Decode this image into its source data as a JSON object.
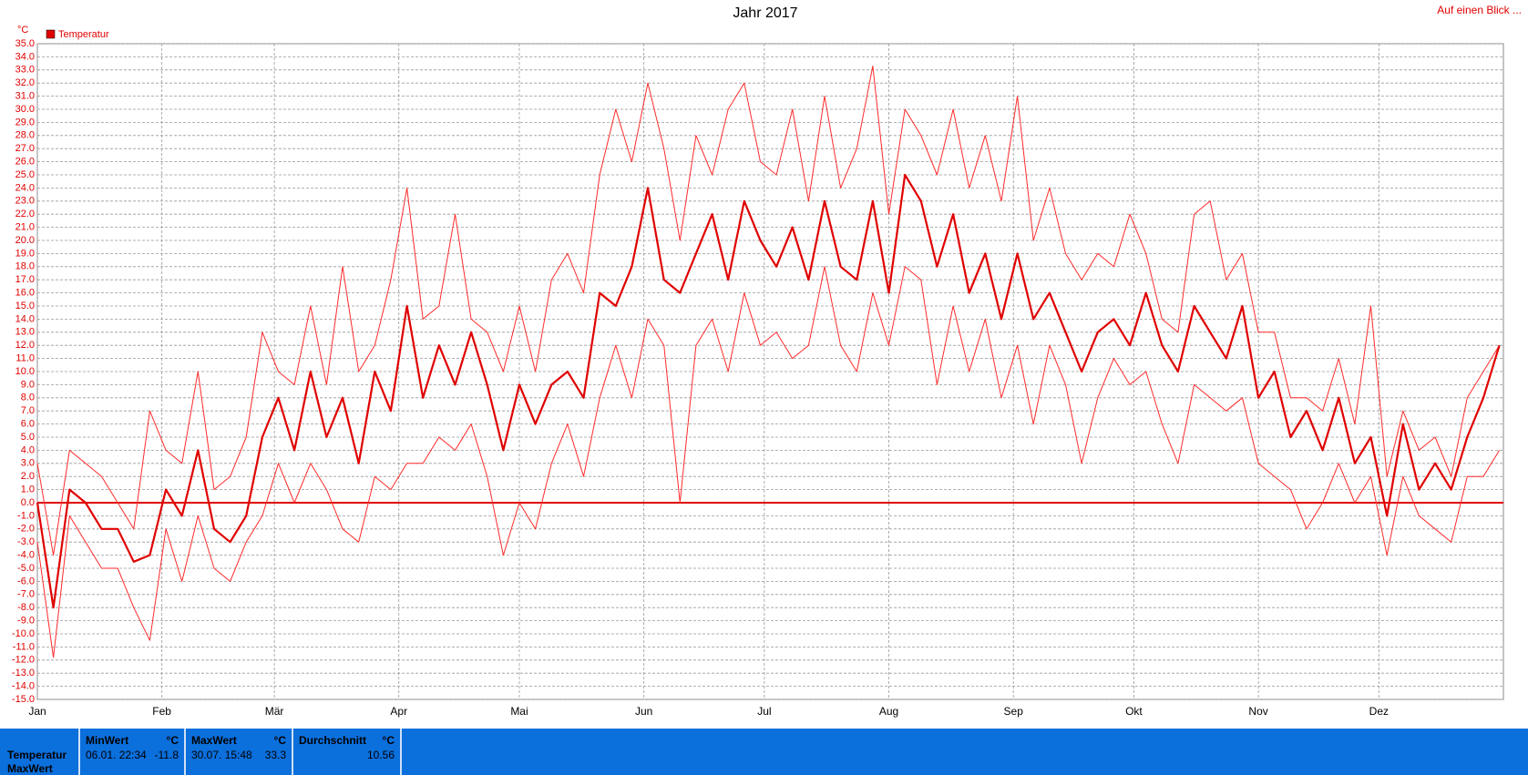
{
  "chart_data": {
    "type": "line",
    "title": "Jahr 2017",
    "y_unit": "°C",
    "legend": "Temperatur",
    "legend_color": "#e00000",
    "link": "Auf einen Blick ...",
    "grid": true,
    "zero_line": true,
    "xlim": [
      0,
      365
    ],
    "xticks": [
      {
        "value": 0,
        "label": "Jan"
      },
      {
        "value": 31,
        "label": "Feb"
      },
      {
        "value": 59,
        "label": "Mär"
      },
      {
        "value": 90,
        "label": "Apr"
      },
      {
        "value": 120,
        "label": "Mai"
      },
      {
        "value": 151,
        "label": "Jun"
      },
      {
        "value": 181,
        "label": "Jul"
      },
      {
        "value": 212,
        "label": "Aug"
      },
      {
        "value": 243,
        "label": "Sep"
      },
      {
        "value": 273,
        "label": "Okt"
      },
      {
        "value": 304,
        "label": "Nov"
      },
      {
        "value": 334,
        "label": "Dez"
      }
    ],
    "ylim": [
      -15,
      35
    ],
    "yticks": [
      {
        "value": 35,
        "label": "35.0"
      },
      {
        "value": 34,
        "label": "34.0"
      },
      {
        "value": 33,
        "label": "33.0"
      },
      {
        "value": 32,
        "label": "32.0"
      },
      {
        "value": 31,
        "label": "31.0"
      },
      {
        "value": 30,
        "label": "30.0"
      },
      {
        "value": 29,
        "label": "29.0"
      },
      {
        "value": 28,
        "label": "28.0"
      },
      {
        "value": 27,
        "label": "27.0"
      },
      {
        "value": 26,
        "label": "26.0"
      },
      {
        "value": 25,
        "label": "25.0"
      },
      {
        "value": 24,
        "label": "24.0"
      },
      {
        "value": 23,
        "label": "23.0"
      },
      {
        "value": 22,
        "label": "22.0"
      },
      {
        "value": 21,
        "label": "21.0"
      },
      {
        "value": 20,
        "label": "20.0"
      },
      {
        "value": 19,
        "label": "19.0"
      },
      {
        "value": 18,
        "label": "18.0"
      },
      {
        "value": 17,
        "label": "17.0"
      },
      {
        "value": 16,
        "label": "16.0"
      },
      {
        "value": 15,
        "label": "15.0"
      },
      {
        "value": 14,
        "label": "14.0"
      },
      {
        "value": 13,
        "label": "13.0"
      },
      {
        "value": 12,
        "label": "12.0"
      },
      {
        "value": 11,
        "label": "11.0"
      },
      {
        "value": 10,
        "label": "10.0"
      },
      {
        "value": 9,
        "label": "9.0"
      },
      {
        "value": 8,
        "label": "8.0"
      },
      {
        "value": 7,
        "label": "7.0"
      },
      {
        "value": 6,
        "label": "6.0"
      },
      {
        "value": 5,
        "label": "5.0"
      },
      {
        "value": 4,
        "label": "4.0"
      },
      {
        "value": 3,
        "label": "3.0"
      },
      {
        "value": 2,
        "label": "2.0"
      },
      {
        "value": 1,
        "label": "1.0"
      },
      {
        "value": 0,
        "label": "0.0"
      },
      {
        "value": -1,
        "label": "-1.0"
      },
      {
        "value": -2,
        "label": "-2.0"
      },
      {
        "value": -3,
        "label": "-3.0"
      },
      {
        "value": -4,
        "label": "-4.0"
      },
      {
        "value": -5,
        "label": "-5.0"
      },
      {
        "value": -6,
        "label": "-6.0"
      },
      {
        "value": -7,
        "label": "-7.0"
      },
      {
        "value": -8,
        "label": "-8.0"
      },
      {
        "value": -9,
        "label": "-9.0"
      },
      {
        "value": -10,
        "label": "-10.0"
      },
      {
        "value": -11,
        "label": "-11.0"
      },
      {
        "value": -12,
        "label": "-12.0"
      },
      {
        "value": -13,
        "label": "-13.0"
      },
      {
        "value": -14,
        "label": "-14.0"
      },
      {
        "value": -15,
        "label": "-15.0"
      }
    ],
    "x": [
      0,
      4,
      8,
      12,
      16,
      20,
      24,
      28,
      32,
      36,
      40,
      44,
      48,
      52,
      56,
      60,
      64,
      68,
      72,
      76,
      80,
      84,
      88,
      92,
      96,
      100,
      104,
      108,
      112,
      116,
      120,
      124,
      128,
      132,
      136,
      140,
      144,
      148,
      152,
      156,
      160,
      164,
      168,
      172,
      176,
      180,
      184,
      188,
      192,
      196,
      200,
      204,
      208,
      212,
      216,
      220,
      224,
      228,
      232,
      236,
      240,
      244,
      248,
      252,
      256,
      260,
      264,
      268,
      272,
      276,
      280,
      284,
      288,
      292,
      296,
      300,
      304,
      308,
      312,
      316,
      320,
      324,
      328,
      332,
      336,
      340,
      344,
      348,
      352,
      356,
      360,
      364
    ],
    "series": [
      {
        "color": "#ff2a2a",
        "width": 1,
        "values": [
          3,
          -4,
          4,
          3,
          2,
          0,
          -2,
          7,
          4,
          3,
          10,
          1,
          2,
          5,
          13,
          10,
          9,
          15,
          9,
          18,
          10,
          12,
          17,
          24,
          14,
          15,
          22,
          14,
          13,
          10,
          15,
          10,
          17,
          19,
          16,
          25,
          30,
          26,
          32,
          27,
          20,
          28,
          25,
          30,
          32,
          26,
          25,
          30,
          23,
          31,
          24,
          27,
          33.3,
          22,
          30,
          28,
          25,
          30,
          24,
          28,
          23,
          31,
          20,
          24,
          19,
          17,
          19,
          18,
          22,
          19,
          14,
          13,
          22,
          23,
          17,
          19,
          13,
          13,
          8,
          8,
          7,
          11,
          6,
          15,
          2,
          7,
          4,
          5,
          2,
          8,
          10,
          12
        ]
      },
      {
        "color": "#e00000",
        "width": 2.2,
        "values": [
          0,
          -8,
          1,
          0,
          -2,
          -2,
          -4.5,
          -4,
          1,
          -1,
          4,
          -2,
          -3,
          -1,
          5,
          8,
          4,
          10,
          5,
          8,
          3,
          10,
          7,
          15,
          8,
          12,
          9,
          13,
          9,
          4,
          9,
          6,
          9,
          10,
          8,
          16,
          15,
          18,
          24,
          17,
          16,
          19,
          22,
          17,
          23,
          20,
          18,
          21,
          17,
          23,
          18,
          17,
          23,
          16,
          25,
          23,
          18,
          22,
          16,
          19,
          14,
          19,
          14,
          16,
          13,
          10,
          13,
          14,
          12,
          16,
          12,
          10,
          15,
          13,
          11,
          15,
          8,
          10,
          5,
          7,
          4,
          8,
          3,
          5,
          -1,
          6,
          1,
          3,
          1,
          5,
          8,
          12
        ]
      },
      {
        "color": "#ff2a2a",
        "width": 1,
        "values": [
          -3,
          -11.8,
          -1,
          -3,
          -5,
          -5,
          -8,
          -10.5,
          -2,
          -6,
          -1,
          -5,
          -6,
          -3,
          -1,
          3,
          0,
          3,
          1,
          -2,
          -3,
          2,
          1,
          3,
          3,
          5,
          4,
          6,
          2,
          -4,
          0,
          -2,
          3,
          6,
          2,
          8,
          12,
          8,
          14,
          12,
          0,
          12,
          14,
          10,
          16,
          12,
          13,
          11,
          12,
          18,
          12,
          10,
          16,
          12,
          18,
          17,
          9,
          15,
          10,
          14,
          8,
          12,
          6,
          12,
          9,
          3,
          8,
          11,
          9,
          10,
          6,
          3,
          9,
          8,
          7,
          8,
          3,
          2,
          1,
          -2,
          0,
          3,
          0,
          2,
          -4,
          2,
          -1,
          -2,
          -3,
          2,
          2,
          4
        ]
      }
    ]
  },
  "summary": {
    "row_labels": [
      "Temperatur",
      "MaxWert"
    ],
    "columns": [
      {
        "header": "MinWert",
        "unit": "°C",
        "time": "06.01.  22:34",
        "value": -11.8
      },
      {
        "header": "MaxWert",
        "unit": "°C",
        "time": "30.07.  15:48",
        "value": 33.3
      },
      {
        "header": "Durchschnitt",
        "unit": "°C",
        "value": 10.56
      }
    ]
  }
}
